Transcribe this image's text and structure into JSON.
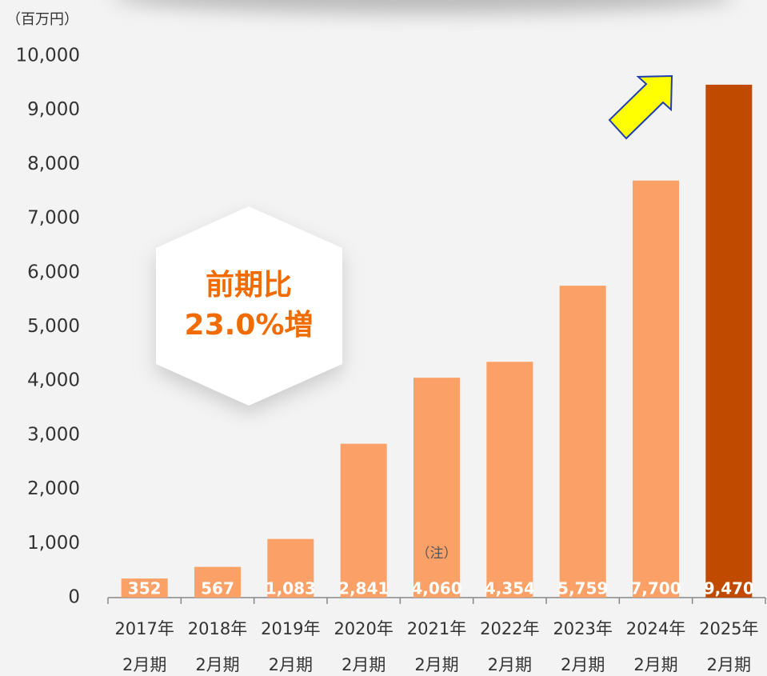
{
  "chart_data": {
    "type": "bar",
    "unit_label": "（百万円）",
    "categories": [
      [
        "2017年",
        "2月期"
      ],
      [
        "2018年",
        "2月期"
      ],
      [
        "2019年",
        "2月期"
      ],
      [
        "2020年",
        "2月期"
      ],
      [
        "2021年",
        "2月期"
      ],
      [
        "2022年",
        "2月期"
      ],
      [
        "2023年",
        "2月期"
      ],
      [
        "2024年",
        "2月期"
      ],
      [
        "2025年",
        "2月期"
      ]
    ],
    "values": [
      352,
      567,
      1083,
      2841,
      4060,
      4354,
      5759,
      7700,
      9470
    ],
    "value_labels": [
      "352",
      "567",
      "1,083",
      "2,841",
      "4,060",
      "4,354",
      "5,759",
      "7,700",
      "9,470"
    ],
    "colors": [
      "#fba066",
      "#fba066",
      "#fba066",
      "#fba066",
      "#fba066",
      "#fba066",
      "#fba066",
      "#fba066",
      "#c04a00"
    ],
    "ylim": [
      0,
      10000
    ],
    "yticks": [
      0,
      {
        "value": 1000,
        "label": "1,000"
      },
      {
        "value": 2000,
        "label": "2,000"
      },
      {
        "value": 3000,
        "label": "3,000"
      },
      {
        "value": 4000,
        "label": "4,000"
      },
      {
        "value": 5000,
        "label": "5,000"
      },
      {
        "value": 6000,
        "label": "6,000"
      },
      {
        "value": 7000,
        "label": "7,000"
      },
      {
        "value": 8000,
        "label": "8,000"
      },
      {
        "value": 9000,
        "label": "9,000"
      },
      {
        "value": 10000,
        "label": "10,000"
      }
    ],
    "annotations": {
      "note": "（注）",
      "growth": [
        "前期比",
        "23.0%増"
      ]
    },
    "grid": false
  }
}
